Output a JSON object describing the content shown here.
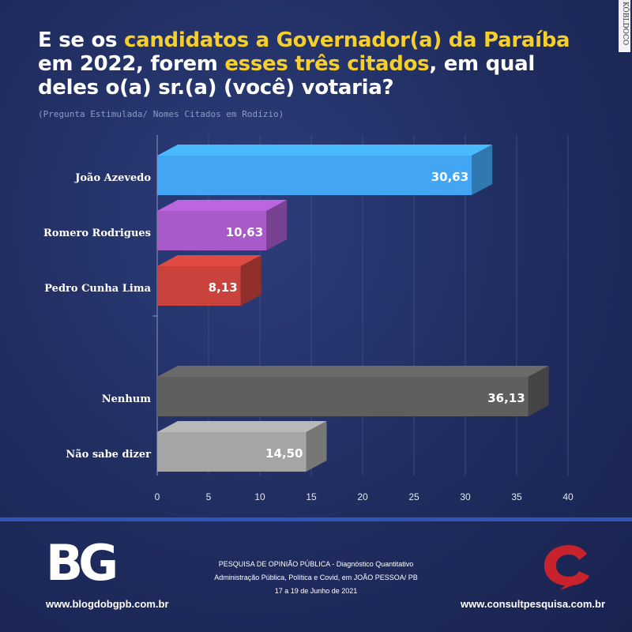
{
  "title": {
    "part1": "E se os ",
    "hl1": "candidatos a Governador(a) da Paraíba",
    "part2": " em 2022, forem ",
    "hl2": "esses três citados",
    "part3": ", em qual deles o(a) sr.(a) (você) votaria?"
  },
  "subtitle": "(Pregunta Estimulada/ Nomes Citados em Rodízio)",
  "side_tag": "KÖBLDOCO",
  "chart_data": {
    "type": "bar",
    "orientation": "horizontal",
    "style": "3d",
    "categories": [
      "João Azevedo",
      "Romero Rodrigues",
      "Pedro Cunha Lima",
      "Nenhum",
      "Não sabe dizer"
    ],
    "values": [
      30.63,
      10.63,
      8.13,
      36.13,
      14.5
    ],
    "value_labels": [
      "30,63",
      "10,63",
      "8,13",
      "36,13",
      "14,50"
    ],
    "colors": [
      "#42a6f5",
      "#a85ac9",
      "#c9423b",
      "#5f5f5f",
      "#a5a5a5"
    ],
    "groups": [
      [
        0,
        1,
        2
      ],
      [
        3,
        4
      ]
    ],
    "xlim": [
      0,
      40
    ],
    "xticks": [
      0,
      5,
      10,
      15,
      20,
      25,
      30,
      35,
      40
    ],
    "grid": true,
    "title": "",
    "xlabel": "",
    "ylabel": ""
  },
  "footer": {
    "left_logo": "BG",
    "left_url": "www.blogdobgpb.com.br",
    "line1": "PESQUISA DE OPINIÃO PÚBLICA - Diagnóstico Quantitativo",
    "line2": "Administração Pública, Política e Covid, em JOÃO PESSOA/ PB",
    "line3": "17 a 19 de Junho de 2021",
    "right_url": "www.consultpesquisa.com.br",
    "right_logo_color": "#c8232c"
  }
}
